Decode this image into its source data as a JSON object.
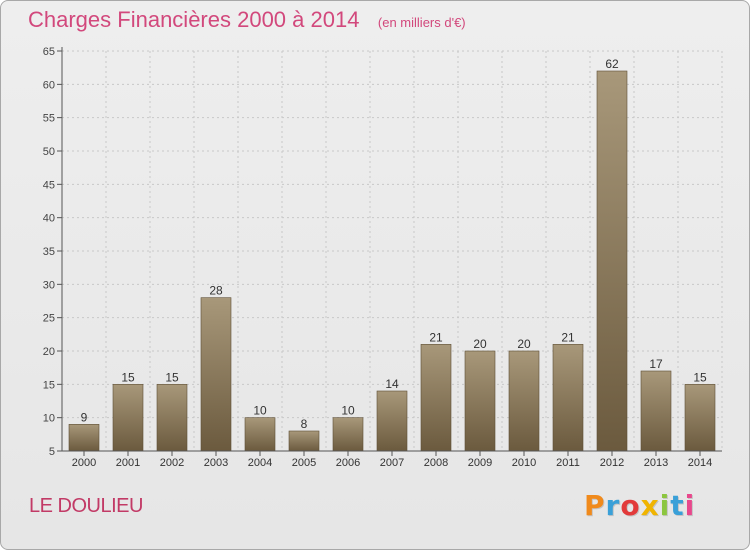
{
  "header": {
    "title": "Charges Financières 2000 à 2014",
    "unit_note": "(en milliers d'€)"
  },
  "footer": {
    "place": "LE DOULIEU",
    "brand": "Proxiti"
  },
  "colors": {
    "title": "#d2487c",
    "bar_light": "#a8987a",
    "bar_dark": "#6b5a3e",
    "grid": "#c8c8c8",
    "axis": "#555555",
    "brand_letters": [
      "#f08a1c",
      "#3aa0d8",
      "#e23a3a",
      "#f0b400",
      "#8cc63f",
      "#3aa0d8",
      "#e8478c"
    ]
  },
  "chart_data": {
    "type": "bar",
    "categories": [
      "2000",
      "2001",
      "2002",
      "2003",
      "2004",
      "2005",
      "2006",
      "2007",
      "2008",
      "2009",
      "2010",
      "2011",
      "2012",
      "2013",
      "2014"
    ],
    "values": [
      9,
      15,
      15,
      28,
      10,
      8,
      10,
      14,
      21,
      20,
      20,
      21,
      62,
      17,
      15
    ],
    "data_labels": [
      "9",
      "15",
      "15",
      "28",
      "10",
      "8",
      "10",
      "14",
      "21",
      "20",
      "20",
      "21",
      "62",
      "17",
      "15"
    ],
    "title": "Charges Financières 2000 à 2014",
    "subtitle": "(en milliers d'€)",
    "ylim": [
      5,
      65
    ],
    "yticks": [
      5,
      10,
      15,
      20,
      25,
      30,
      35,
      40,
      45,
      50,
      55,
      60,
      65
    ],
    "grid": true,
    "legend": "none"
  }
}
